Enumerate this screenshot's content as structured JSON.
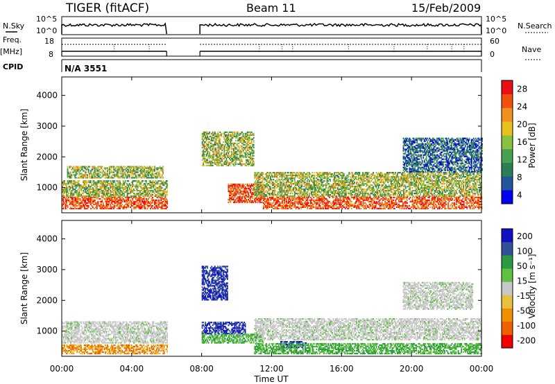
{
  "header": {
    "station": "TIGER (fitACF)",
    "beam": "Beam 11",
    "date": "15/Feb/2009"
  },
  "summary": {
    "nsky_label": "N.Sky",
    "nsky_ticks": [
      "10^5",
      "10^0"
    ],
    "nsearch_label": "N.Search",
    "nsearch_ticks": [
      "10^5",
      "10^0"
    ],
    "freq_label_1": "Freq.",
    "freq_label_2": "[MHz]",
    "freq_ticks": [
      "18",
      "8"
    ],
    "nave_label": "Nave",
    "nave_ticks": [
      "60",
      "0"
    ],
    "cpid_label": "CPID",
    "cpid_text": "N/A 3551"
  },
  "colors": {
    "power_scale": [
      "#0000ee",
      "#225599",
      "#2a7f55",
      "#48a050",
      "#88c040",
      "#e8c020",
      "#f09020",
      "#f05010",
      "#e81010"
    ],
    "velocity_scale": [
      "#ee0000",
      "#f06000",
      "#f09000",
      "#e8c040",
      "#c8c8c8",
      "#60c040",
      "#2a9a40",
      "#30509a",
      "#1010c0"
    ]
  },
  "chart_data": [
    {
      "type": "heatmap",
      "panel": "power",
      "ylabel": "Slant Range [km]",
      "ylim": [
        180,
        4600
      ],
      "xlim_hours": [
        0,
        24
      ],
      "yticks": [
        "1000",
        "2000",
        "3000",
        "4000"
      ],
      "colorbar_label": "Power [dB]",
      "colorbar_ticks": [
        "28",
        "24",
        "20",
        "16",
        "12",
        "8",
        "4"
      ],
      "data_gap_hours": [
        6.0,
        7.9
      ],
      "echo_bands": [
        {
          "t": [
            0.0,
            6.0
          ],
          "range_km": [
            300,
            700
          ],
          "level": "high"
        },
        {
          "t": [
            0.0,
            6.0
          ],
          "range_km": [
            700,
            1200
          ],
          "level": "medium"
        },
        {
          "t": [
            0.3,
            5.8
          ],
          "range_km": [
            1300,
            1700
          ],
          "level": "medium"
        },
        {
          "t": [
            8.0,
            11.0
          ],
          "range_km": [
            1700,
            2800
          ],
          "level": "medium"
        },
        {
          "t": [
            9.5,
            11.5
          ],
          "range_km": [
            500,
            1100
          ],
          "level": "high"
        },
        {
          "t": [
            11.0,
            24.0
          ],
          "range_km": [
            700,
            1500
          ],
          "level": "medium"
        },
        {
          "t": [
            11.5,
            24.0
          ],
          "range_km": [
            300,
            700
          ],
          "level": "high"
        },
        {
          "t": [
            19.5,
            24.0
          ],
          "range_km": [
            1500,
            2600
          ],
          "level": "low"
        }
      ]
    },
    {
      "type": "heatmap",
      "panel": "velocity",
      "ylabel": "Slant Range [km]",
      "ylim": [
        180,
        4600
      ],
      "xlim_hours": [
        0,
        24
      ],
      "yticks": [
        "1000",
        "2000",
        "3000",
        "4000"
      ],
      "xticks": [
        "00:00",
        "04:00",
        "08:00",
        "12:00",
        "16:00",
        "20:00",
        "00:00"
      ],
      "xlabel": "Time UT",
      "colorbar_label": "Velocity [m s⁻¹]",
      "colorbar_ticks": [
        "200",
        "100",
        "50",
        "15",
        "-15",
        "-50",
        "-100",
        "-200"
      ],
      "data_gap_hours": [
        6.0,
        7.9
      ],
      "echo_bands": [
        {
          "t": [
            0.0,
            6.0
          ],
          "range_km": [
            600,
            1300
          ],
          "level": "gray"
        },
        {
          "t": [
            0.0,
            6.0
          ],
          "range_km": [
            250,
            550
          ],
          "level": "orange"
        },
        {
          "t": [
            8.0,
            9.5
          ],
          "range_km": [
            2000,
            3100
          ],
          "level": "blue"
        },
        {
          "t": [
            8.0,
            10.5
          ],
          "range_km": [
            900,
            1300
          ],
          "level": "blue"
        },
        {
          "t": [
            8.0,
            11.5
          ],
          "range_km": [
            600,
            900
          ],
          "level": "green"
        },
        {
          "t": [
            12.5,
            14.0
          ],
          "range_km": [
            450,
            650
          ],
          "level": "blue"
        },
        {
          "t": [
            11.0,
            24.0
          ],
          "range_km": [
            700,
            1400
          ],
          "level": "gray"
        },
        {
          "t": [
            11.0,
            24.0
          ],
          "range_km": [
            250,
            600
          ],
          "level": "green"
        },
        {
          "t": [
            19.5,
            23.5
          ],
          "range_km": [
            1700,
            2600
          ],
          "level": "gray"
        }
      ]
    }
  ]
}
